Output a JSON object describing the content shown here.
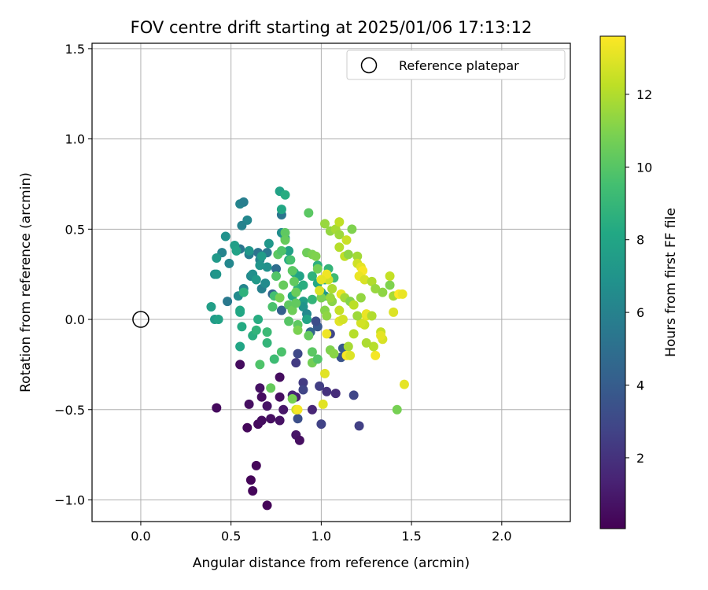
{
  "chart_data": {
    "type": "scatter",
    "title": "FOV centre drift starting at 2025/01/06 17:13:12",
    "xlabel": "Angular distance from reference (arcmin)",
    "ylabel": "Rotation from reference (arcmin)",
    "xlim": [
      -0.27,
      2.38
    ],
    "ylim": [
      -1.12,
      1.53
    ],
    "xticks": [
      0.0,
      0.5,
      1.0,
      1.5,
      2.0
    ],
    "xtick_labels": [
      "0.0",
      "0.5",
      "1.0",
      "1.5",
      "2.0"
    ],
    "yticks": [
      -1.0,
      -0.5,
      0.0,
      0.5,
      1.0,
      1.5
    ],
    "ytick_labels": [
      "−1.0",
      "−0.5",
      "0.0",
      "0.5",
      "1.0",
      "1.5"
    ],
    "grid": true,
    "legend": {
      "placement": "top-right",
      "entries": [
        {
          "label": "Reference platepar",
          "marker": "open-circle"
        }
      ]
    },
    "reference_point": {
      "x": 0.0,
      "y": 0.0
    },
    "colorbar": {
      "label": "Hours from first FF file",
      "colormap": "viridis",
      "range": [
        0.05,
        13.6
      ],
      "ticks": [
        2,
        4,
        6,
        8,
        10,
        12
      ],
      "tick_labels": [
        "2",
        "4",
        "6",
        "8",
        "10",
        "12"
      ]
    },
    "points": [
      [
        0.55,
        -0.25,
        0.5
      ],
      [
        0.42,
        -0.49,
        0.4
      ],
      [
        0.59,
        -0.6,
        0.3
      ],
      [
        0.6,
        -0.47,
        0.6
      ],
      [
        0.65,
        -0.58,
        0.4
      ],
      [
        0.67,
        -0.56,
        0.5
      ],
      [
        0.72,
        -0.55,
        0.6
      ],
      [
        0.7,
        -0.48,
        0.8
      ],
      [
        0.66,
        -0.38,
        0.7
      ],
      [
        0.67,
        -0.43,
        0.5
      ],
      [
        0.64,
        -0.81,
        0.3
      ],
      [
        0.61,
        -0.89,
        0.2
      ],
      [
        0.62,
        -0.95,
        0.3
      ],
      [
        0.7,
        -1.03,
        0.2
      ],
      [
        0.77,
        -0.43,
        0.6
      ],
      [
        0.77,
        -0.32,
        0.5
      ],
      [
        0.77,
        -0.56,
        0.7
      ],
      [
        0.79,
        -0.5,
        0.9
      ],
      [
        0.86,
        -0.64,
        0.8
      ],
      [
        0.88,
        -0.67,
        0.6
      ],
      [
        0.86,
        -0.43,
        1.2
      ],
      [
        0.84,
        -0.42,
        1.5
      ],
      [
        0.9,
        -0.35,
        2.4
      ],
      [
        0.9,
        -0.39,
        2.8
      ],
      [
        0.95,
        -0.5,
        1.5
      ],
      [
        0.99,
        -0.37,
        2.5
      ],
      [
        1.03,
        -0.4,
        2.0
      ],
      [
        1.08,
        -0.41,
        1.8
      ],
      [
        1.0,
        -0.58,
        2.7
      ],
      [
        1.18,
        -0.42,
        2.9
      ],
      [
        1.21,
        -0.59,
        2.6
      ],
      [
        0.87,
        -0.19,
        3.0
      ],
      [
        0.86,
        -0.24,
        2.4
      ],
      [
        0.87,
        -0.55,
        3.3
      ],
      [
        0.94,
        -0.07,
        4.5
      ],
      [
        0.98,
        -0.04,
        3.8
      ],
      [
        0.97,
        -0.01,
        3.2
      ],
      [
        1.05,
        -0.08,
        2.9
      ],
      [
        1.11,
        -0.21,
        3.5
      ],
      [
        1.12,
        -0.16,
        3.8
      ],
      [
        0.78,
        0.05,
        4.2
      ],
      [
        0.73,
        0.14,
        4.4
      ],
      [
        0.75,
        0.28,
        4.9
      ],
      [
        0.7,
        0.37,
        5.5
      ],
      [
        0.65,
        0.37,
        5.2
      ],
      [
        0.6,
        0.36,
        5.7
      ],
      [
        0.55,
        0.39,
        5.3
      ],
      [
        0.48,
        0.1,
        5.5
      ],
      [
        0.45,
        0.37,
        6.1
      ],
      [
        0.49,
        0.31,
        6.3
      ],
      [
        0.47,
        0.46,
        6.9
      ],
      [
        0.55,
        0.64,
        6.2
      ],
      [
        0.57,
        0.65,
        5.8
      ],
      [
        0.59,
        0.55,
        6.3
      ],
      [
        0.56,
        0.52,
        6.0
      ],
      [
        0.54,
        0.13,
        6.5
      ],
      [
        0.57,
        0.17,
        6.2
      ],
      [
        0.61,
        0.24,
        6.4
      ],
      [
        0.62,
        0.25,
        6.7
      ],
      [
        0.66,
        0.33,
        6.1
      ],
      [
        0.67,
        0.17,
        5.9
      ],
      [
        0.69,
        0.2,
        6.5
      ],
      [
        0.7,
        0.29,
        6.8
      ],
      [
        0.71,
        0.42,
        7.2
      ],
      [
        0.67,
        0.35,
        7.5
      ],
      [
        0.66,
        0.3,
        7.0
      ],
      [
        0.64,
        0.22,
        7.3
      ],
      [
        0.6,
        0.38,
        7.1
      ],
      [
        0.52,
        0.41,
        7.6
      ],
      [
        0.53,
        0.38,
        7.8
      ],
      [
        0.41,
        0.25,
        6.6
      ],
      [
        0.42,
        0.25,
        7.1
      ],
      [
        0.42,
        0.34,
        7.3
      ],
      [
        0.39,
        0.07,
        7.6
      ],
      [
        0.41,
        0.0,
        7.4
      ],
      [
        0.43,
        0.0,
        7.8
      ],
      [
        0.55,
        0.05,
        8.2
      ],
      [
        0.57,
        0.15,
        8.7
      ],
      [
        0.55,
        0.04,
        8.1
      ],
      [
        0.56,
        -0.04,
        8.3
      ],
      [
        0.55,
        -0.15,
        8.0
      ],
      [
        0.62,
        -0.09,
        8.5
      ],
      [
        0.65,
        0.0,
        8.4
      ],
      [
        0.64,
        -0.06,
        8.8
      ],
      [
        0.7,
        -0.13,
        8.9
      ],
      [
        0.7,
        -0.07,
        9.2
      ],
      [
        0.74,
        -0.22,
        9.3
      ],
      [
        0.66,
        -0.25,
        9.8
      ],
      [
        0.78,
        0.58,
        5.3
      ],
      [
        0.77,
        0.71,
        7.8
      ],
      [
        0.8,
        0.69,
        8.4
      ],
      [
        0.78,
        0.61,
        8.1
      ],
      [
        0.78,
        0.48,
        6.6
      ],
      [
        0.8,
        0.45,
        7.4
      ],
      [
        0.82,
        0.38,
        7.7
      ],
      [
        0.82,
        0.33,
        8.3
      ],
      [
        0.85,
        0.26,
        8.6
      ],
      [
        0.88,
        0.24,
        7.9
      ],
      [
        0.84,
        0.13,
        8.2
      ],
      [
        0.87,
        0.17,
        8.8
      ],
      [
        0.9,
        0.19,
        8.5
      ],
      [
        0.9,
        0.1,
        7.6
      ],
      [
        0.9,
        0.07,
        7.0
      ],
      [
        0.92,
        0.03,
        6.4
      ],
      [
        0.92,
        0.0,
        8.0
      ],
      [
        0.95,
        0.11,
        8.9
      ],
      [
        0.95,
        0.24,
        8.7
      ],
      [
        0.98,
        0.3,
        8.6
      ],
      [
        0.98,
        0.2,
        8.2
      ],
      [
        1.0,
        0.15,
        7.8
      ],
      [
        1.02,
        0.13,
        7.3
      ],
      [
        1.02,
        0.22,
        8.5
      ],
      [
        1.04,
        0.28,
        8.9
      ],
      [
        1.07,
        0.23,
        9.3
      ],
      [
        0.73,
        0.07,
        9.7
      ],
      [
        0.74,
        0.13,
        9.5
      ],
      [
        0.75,
        0.24,
        9.9
      ],
      [
        0.76,
        0.36,
        10.1
      ],
      [
        0.78,
        0.38,
        9.8
      ],
      [
        0.8,
        0.48,
        10.2
      ],
      [
        0.8,
        0.44,
        10.4
      ],
      [
        0.83,
        0.33,
        9.6
      ],
      [
        0.84,
        0.27,
        10.1
      ],
      [
        0.85,
        0.21,
        10.3
      ],
      [
        0.86,
        0.15,
        10.5
      ],
      [
        0.82,
        0.08,
        10.2
      ],
      [
        0.84,
        0.05,
        10.6
      ],
      [
        0.86,
        0.09,
        10.3
      ],
      [
        0.79,
        0.19,
        10.4
      ],
      [
        0.77,
        0.12,
        10.8
      ],
      [
        0.82,
        -0.01,
        10.0
      ],
      [
        0.87,
        -0.03,
        10.2
      ],
      [
        0.93,
        -0.09,
        10.4
      ],
      [
        0.95,
        -0.18,
        10.1
      ],
      [
        0.95,
        -0.24,
        10.7
      ],
      [
        0.98,
        -0.22,
        9.9
      ],
      [
        0.78,
        -0.18,
        9.7
      ],
      [
        0.72,
        -0.38,
        10.4
      ],
      [
        0.84,
        -0.44,
        10.8
      ],
      [
        0.87,
        -0.06,
        10.9
      ],
      [
        0.93,
        0.59,
        10.1
      ],
      [
        0.92,
        0.37,
        10.6
      ],
      [
        0.95,
        0.36,
        10.9
      ],
      [
        0.97,
        0.35,
        11.0
      ],
      [
        0.98,
        0.28,
        10.7
      ],
      [
        1.0,
        0.12,
        10.9
      ],
      [
        1.02,
        0.05,
        11.1
      ],
      [
        1.03,
        0.02,
        11.3
      ],
      [
        1.05,
        -0.17,
        11.0
      ],
      [
        1.07,
        -0.19,
        11.2
      ],
      [
        1.02,
        0.53,
        11.5
      ],
      [
        1.05,
        0.49,
        11.4
      ],
      [
        1.08,
        0.5,
        11.8
      ],
      [
        1.1,
        0.47,
        11.6
      ],
      [
        1.1,
        0.54,
        12.3
      ],
      [
        1.14,
        0.44,
        12.5
      ],
      [
        1.1,
        0.4,
        12.1
      ],
      [
        1.13,
        0.35,
        12.3
      ],
      [
        1.17,
        0.5,
        11.0
      ],
      [
        1.15,
        0.36,
        11.3
      ],
      [
        1.2,
        0.35,
        11.7
      ],
      [
        1.2,
        0.31,
        12.6
      ],
      [
        1.22,
        0.29,
        13.1
      ],
      [
        1.23,
        0.27,
        13.5
      ],
      [
        1.21,
        0.24,
        13.2
      ],
      [
        1.24,
        0.22,
        12.8
      ],
      [
        1.28,
        0.21,
        12.0
      ],
      [
        1.3,
        0.17,
        11.5
      ],
      [
        1.34,
        0.15,
        11.3
      ],
      [
        1.38,
        0.19,
        11.0
      ],
      [
        1.38,
        0.24,
        12.4
      ],
      [
        1.4,
        0.13,
        11.8
      ],
      [
        1.43,
        0.14,
        13.6
      ],
      [
        1.45,
        0.14,
        13.2
      ],
      [
        1.4,
        0.04,
        12.9
      ],
      [
        1.33,
        -0.07,
        12.4
      ],
      [
        1.34,
        -0.11,
        12.8
      ],
      [
        1.33,
        -0.09,
        13.1
      ],
      [
        1.3,
        -0.2,
        13.4
      ],
      [
        1.29,
        -0.15,
        12.1
      ],
      [
        1.25,
        -0.13,
        11.9
      ],
      [
        1.24,
        -0.03,
        12.5
      ],
      [
        1.25,
        0.02,
        13.0
      ],
      [
        1.22,
        -0.02,
        12.7
      ],
      [
        1.2,
        0.02,
        11.6
      ],
      [
        1.18,
        -0.08,
        12.1
      ],
      [
        1.15,
        -0.15,
        11.8
      ],
      [
        1.14,
        -0.2,
        13.5
      ],
      [
        1.1,
        -0.01,
        13.0
      ],
      [
        1.12,
        0.0,
        12.7
      ],
      [
        1.1,
        0.05,
        12.4
      ],
      [
        1.06,
        0.1,
        11.2
      ],
      [
        1.06,
        0.17,
        11.9
      ],
      [
        1.04,
        0.22,
        12.6
      ],
      [
        1.03,
        0.25,
        13.3
      ],
      [
        1.0,
        0.22,
        13.1
      ],
      [
        0.99,
        0.16,
        12.8
      ],
      [
        1.05,
        0.12,
        11.5
      ],
      [
        1.11,
        0.14,
        13.2
      ],
      [
        1.13,
        0.12,
        11.7
      ],
      [
        1.16,
        0.1,
        11.1
      ],
      [
        1.18,
        0.08,
        12.2
      ],
      [
        1.22,
        0.12,
        11.4
      ],
      [
        1.25,
        0.03,
        13.2
      ],
      [
        1.28,
        0.02,
        12.0
      ],
      [
        1.03,
        -0.08,
        13.3
      ],
      [
        1.02,
        -0.3,
        13.0
      ],
      [
        0.86,
        -0.5,
        12.6
      ],
      [
        0.87,
        -0.5,
        13.4
      ],
      [
        1.01,
        -0.47,
        13.0
      ],
      [
        1.42,
        -0.5,
        10.8
      ],
      [
        1.46,
        -0.36,
        13.1
      ],
      [
        1.16,
        -0.2,
        12.9
      ]
    ]
  }
}
